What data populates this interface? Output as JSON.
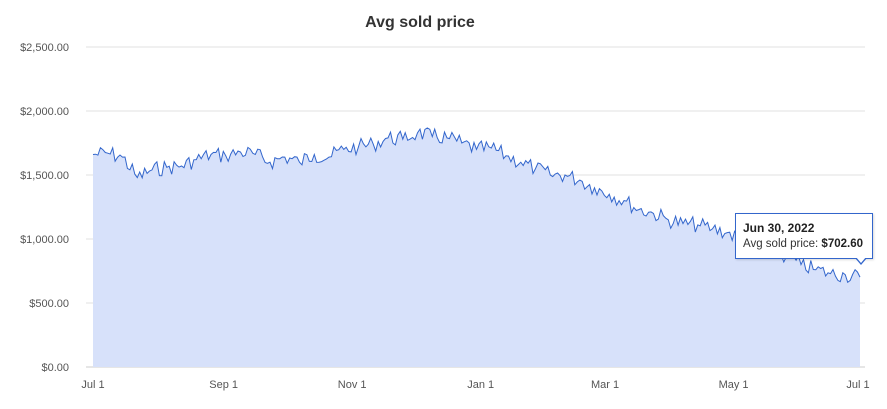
{
  "chart_data": {
    "type": "area",
    "title": "Avg sold price",
    "xlabel": "",
    "ylabel": "",
    "x_start": "2021-07-01",
    "x_end": "2022-06-30",
    "ylim": [
      0,
      2500
    ],
    "y_ticks": [
      "$0.00",
      "$500.00",
      "$1,000.00",
      "$1,500.00",
      "$2,000.00",
      "$2,500.00"
    ],
    "x_ticks": [
      {
        "label": "Jul 1",
        "date": "2021-07-01"
      },
      {
        "label": "Sep 1",
        "date": "2021-09-01"
      },
      {
        "label": "Nov 1",
        "date": "2021-11-01"
      },
      {
        "label": "Jan 1",
        "date": "2022-01-01"
      },
      {
        "label": "Mar 1",
        "date": "2022-03-01"
      },
      {
        "label": "May 1",
        "date": "2022-05-01"
      },
      {
        "label": "Jul 1",
        "date": "2022-07-01"
      }
    ],
    "grid": true,
    "legend": "none",
    "series": [
      {
        "dates": [
          "2021-07-01",
          "2021-07-08",
          "2021-07-15",
          "2021-07-22",
          "2021-07-29",
          "2021-08-05",
          "2021-08-12",
          "2021-08-19",
          "2021-08-26",
          "2021-09-02",
          "2021-09-09",
          "2021-09-16",
          "2021-09-23",
          "2021-09-30",
          "2021-10-07",
          "2021-10-14",
          "2021-10-21",
          "2021-10-28",
          "2021-11-04",
          "2021-11-11",
          "2021-11-18",
          "2021-11-25",
          "2021-12-02",
          "2021-12-09",
          "2021-12-16",
          "2021-12-23",
          "2021-12-30",
          "2022-01-06",
          "2022-01-13",
          "2022-01-20",
          "2022-01-27",
          "2022-02-03",
          "2022-02-10",
          "2022-02-17",
          "2022-02-24",
          "2022-03-03",
          "2022-03-10",
          "2022-03-17",
          "2022-03-24",
          "2022-03-31",
          "2022-04-07",
          "2022-04-14",
          "2022-04-21",
          "2022-04-28",
          "2022-05-05",
          "2022-05-12",
          "2022-05-19",
          "2022-05-26",
          "2022-06-02",
          "2022-06-09",
          "2022-06-16",
          "2022-06-23",
          "2022-06-30"
        ],
        "values": [
          1660,
          1670,
          1640,
          1480,
          1540,
          1560,
          1570,
          1620,
          1660,
          1650,
          1680,
          1660,
          1600,
          1640,
          1600,
          1660,
          1640,
          1700,
          1720,
          1740,
          1790,
          1780,
          1830,
          1800,
          1790,
          1750,
          1700,
          1710,
          1650,
          1600,
          1550,
          1500,
          1500,
          1460,
          1400,
          1350,
          1300,
          1230,
          1200,
          1150,
          1120,
          1110,
          1080,
          1050,
          990,
          960,
          920,
          860,
          800,
          760,
          730,
          720,
          702.6
        ]
      }
    ],
    "colors": {
      "line": "#3366cc",
      "fill": "#d7e1fa",
      "grid": "#e0e0e0"
    }
  },
  "tooltip": {
    "date": "Jun 30, 2022",
    "label": "Avg sold price: ",
    "value": "$702.60"
  }
}
